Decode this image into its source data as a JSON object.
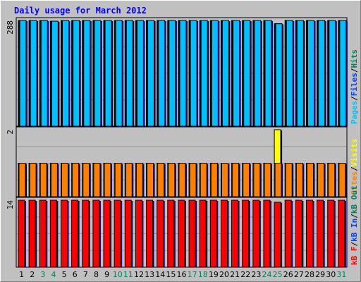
{
  "chart_data": {
    "title": "Daily usage for March 2012",
    "days": [
      "1",
      "2",
      "3",
      "4",
      "5",
      "6",
      "7",
      "8",
      "9",
      "10",
      "11",
      "12",
      "13",
      "14",
      "15",
      "16",
      "17",
      "18",
      "19",
      "20",
      "21",
      "22",
      "23",
      "24",
      "25",
      "26",
      "27",
      "28",
      "29",
      "30",
      "31"
    ],
    "weekend_days": [
      "3",
      "4",
      "10",
      "11",
      "17",
      "18",
      "24",
      "25",
      "31"
    ],
    "panels": [
      {
        "type": "bar",
        "name": "top",
        "max_label": "288",
        "ymax": 288,
        "legend_parts": [
          "Pages",
          "/",
          "Files",
          "/",
          "Hits"
        ],
        "series": [
          {
            "name": "Hits",
            "color": "#00805c",
            "values": [
              288,
              288,
              288,
              286,
              288,
              288,
              288,
              288,
              288,
              288,
              288,
              288,
              288,
              288,
              288,
              288,
              288,
              288,
              288,
              288,
              288,
              288,
              288,
              288,
              279,
              288,
              288,
              288,
              288,
              288,
              288
            ]
          },
          {
            "name": "Files",
            "color": "#0040ff",
            "values": [
              288,
              288,
              288,
              286,
              288,
              288,
              288,
              288,
              288,
              288,
              288,
              288,
              288,
              288,
              288,
              288,
              288,
              288,
              288,
              288,
              288,
              288,
              288,
              288,
              279,
              288,
              288,
              288,
              288,
              288,
              288
            ]
          },
          {
            "name": "Pages",
            "color": "#00c0ff",
            "values": [
              288,
              288,
              288,
              286,
              288,
              288,
              288,
              288,
              288,
              288,
              288,
              288,
              288,
              288,
              288,
              288,
              288,
              288,
              288,
              288,
              288,
              288,
              288,
              288,
              279,
              288,
              288,
              288,
              288,
              288,
              288
            ]
          }
        ]
      },
      {
        "type": "bar",
        "name": "middle",
        "max_label": "2",
        "ymax": 2,
        "legend_parts": [
          "Sites",
          "/",
          "Visits"
        ],
        "series": [
          {
            "name": "Visits",
            "color": "#ffff00",
            "values": [
              1,
              1,
              1,
              1,
              1,
              1,
              1,
              1,
              1,
              1,
              1,
              1,
              1,
              1,
              1,
              1,
              1,
              1,
              1,
              1,
              1,
              1,
              1,
              1,
              2,
              1,
              1,
              1,
              1,
              1,
              1
            ]
          },
          {
            "name": "Sites",
            "color": "#ff8000",
            "values": [
              1,
              1,
              1,
              1,
              1,
              1,
              1,
              1,
              1,
              1,
              1,
              1,
              1,
              1,
              1,
              1,
              1,
              1,
              1,
              1,
              1,
              1,
              1,
              1,
              1,
              1,
              1,
              1,
              1,
              1,
              1
            ]
          }
        ]
      },
      {
        "type": "bar",
        "name": "bottom",
        "max_label": "14",
        "ymax": 14,
        "legend_parts": [
          "kB F",
          "/",
          "kB In",
          "/",
          "kB Out"
        ],
        "series": [
          {
            "name": "kB F",
            "color": "#ff0000",
            "values": [
              14,
              14,
              14,
              14,
              14,
              14,
              14,
              14,
              14,
              14,
              14,
              14,
              14,
              14,
              14,
              14,
              14,
              14,
              14,
              14,
              14,
              14,
              14,
              14,
              13.6,
              14,
              14,
              14,
              14,
              14,
              14
            ]
          }
        ]
      }
    ]
  },
  "colors": {
    "plot_bg": "#c0c0c0",
    "frame": "#000000",
    "grid": "#999999",
    "title": "#0000ff",
    "weekday_label": "#000000",
    "weekend_label": "#00805c",
    "slash": "#000000",
    "legend": {
      "Pages": "#00c0ff",
      "Files": "#0040ff",
      "Hits": "#00805c",
      "Sites": "#ff8000",
      "Visits": "#ffff00",
      "kB F": "#ff0000",
      "kB In": "#0040ff",
      "kB Out": "#00805c"
    }
  }
}
